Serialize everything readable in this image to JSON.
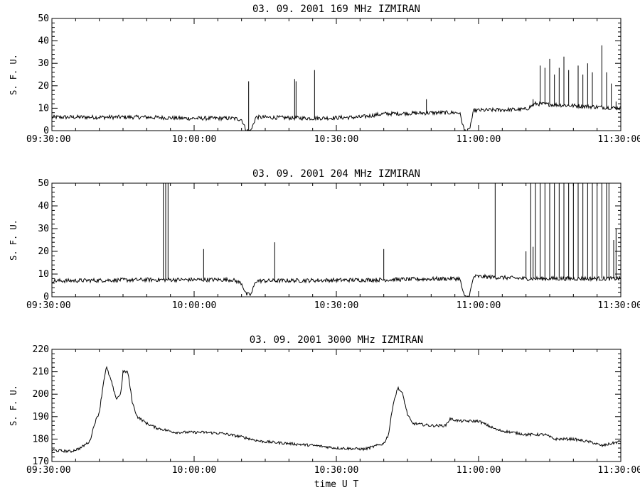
{
  "chart_data": [
    {
      "type": "line",
      "title": "03.  09.  2001   169 MHz   IZMIRAN",
      "ylabel": "S. F. U.",
      "xlabel": "",
      "ylim": [
        0,
        50
      ],
      "yticks": [
        0,
        10,
        20,
        30,
        40,
        50
      ],
      "xticks": [
        "09:30:00",
        "10:00:00",
        "10:30:00",
        "11:00:00",
        "11:30:00"
      ],
      "x_range_minutes": [
        0,
        120
      ],
      "baseline": [
        [
          0,
          6
        ],
        [
          20,
          6
        ],
        [
          28,
          5.5
        ],
        [
          38,
          5.5
        ],
        [
          40,
          5
        ],
        [
          41,
          0
        ],
        [
          42,
          0
        ],
        [
          43,
          6
        ],
        [
          55,
          5.5
        ],
        [
          65,
          6
        ],
        [
          70,
          7.5
        ],
        [
          82,
          8
        ],
        [
          86,
          8
        ],
        [
          87,
          0
        ],
        [
          88,
          0
        ],
        [
          89,
          9
        ],
        [
          100,
          9.5
        ],
        [
          102,
          12
        ],
        [
          120,
          10
        ]
      ],
      "spikes": [
        [
          41.5,
          22
        ],
        [
          51.2,
          23
        ],
        [
          51.5,
          22
        ],
        [
          55.4,
          27
        ],
        [
          79,
          14
        ],
        [
          101.5,
          14
        ],
        [
          103,
          29
        ],
        [
          104,
          28
        ],
        [
          105,
          32
        ],
        [
          106,
          25
        ],
        [
          107,
          28
        ],
        [
          108,
          33
        ],
        [
          109,
          27
        ],
        [
          111,
          29
        ],
        [
          112,
          25
        ],
        [
          113,
          30
        ],
        [
          114,
          26
        ],
        [
          116,
          38
        ],
        [
          117,
          26
        ],
        [
          118,
          21
        ],
        [
          119,
          13
        ]
      ],
      "noise": 0.9
    },
    {
      "type": "line",
      "title": "03.  09.  2001   204 MHz   IZMIRAN",
      "ylabel": "S. F. U.",
      "xlabel": "",
      "ylim": [
        0,
        50
      ],
      "yticks": [
        0,
        10,
        20,
        30,
        40,
        50
      ],
      "xticks": [
        "09:30:00",
        "10:00:00",
        "10:30:00",
        "11:00:00",
        "11:30:00"
      ],
      "x_range_minutes": [
        0,
        120
      ],
      "baseline": [
        [
          0,
          7
        ],
        [
          20,
          7.5
        ],
        [
          38,
          7.5
        ],
        [
          40,
          6
        ],
        [
          41,
          1
        ],
        [
          42,
          1
        ],
        [
          43,
          7
        ],
        [
          70,
          7.5
        ],
        [
          84,
          8
        ],
        [
          86,
          8
        ],
        [
          87,
          0
        ],
        [
          88,
          0
        ],
        [
          89,
          9
        ],
        [
          100,
          8
        ],
        [
          120,
          8
        ]
      ],
      "spikes": [
        [
          23.5,
          50
        ],
        [
          24,
          50
        ],
        [
          24.5,
          50
        ],
        [
          32,
          21
        ],
        [
          47,
          24
        ],
        [
          70,
          21
        ],
        [
          93.5,
          50
        ],
        [
          101,
          50
        ],
        [
          102,
          50
        ],
        [
          103,
          50
        ],
        [
          104,
          50
        ],
        [
          105,
          50
        ],
        [
          106,
          50
        ],
        [
          107,
          50
        ],
        [
          108,
          50
        ],
        [
          109,
          50
        ],
        [
          110,
          50
        ],
        [
          111,
          50
        ],
        [
          112,
          50
        ],
        [
          113,
          50
        ],
        [
          114,
          50
        ],
        [
          115,
          50
        ],
        [
          116,
          50
        ],
        [
          117,
          50
        ],
        [
          117.5,
          50
        ],
        [
          100,
          20
        ],
        [
          101.5,
          22
        ],
        [
          118.5,
          25
        ],
        [
          119,
          30
        ]
      ],
      "noise": 0.9
    },
    {
      "type": "line",
      "title": "03.  09.  2001   3000 MHz   IZMIRAN",
      "ylabel": "S. F. U.",
      "xlabel": "time   U T",
      "ylim": [
        170,
        220
      ],
      "yticks": [
        170,
        180,
        190,
        200,
        210,
        220
      ],
      "xticks": [
        "09:30:00",
        "10:00:00",
        "10:30:00",
        "11:00:00",
        "11:30:00"
      ],
      "x_range_minutes": [
        0,
        120
      ],
      "points": [
        [
          0,
          175
        ],
        [
          4,
          174.5
        ],
        [
          6,
          176
        ],
        [
          8,
          179
        ],
        [
          9,
          187
        ],
        [
          10,
          192
        ],
        [
          11,
          207
        ],
        [
          11.5,
          212
        ],
        [
          12.5,
          206
        ],
        [
          13.5,
          198
        ],
        [
          14.5,
          200
        ],
        [
          15,
          210
        ],
        [
          16,
          210
        ],
        [
          17,
          196
        ],
        [
          18,
          190
        ],
        [
          20,
          187
        ],
        [
          22,
          185
        ],
        [
          26,
          183
        ],
        [
          32,
          183
        ],
        [
          36,
          182.5
        ],
        [
          40,
          181
        ],
        [
          44,
          179
        ],
        [
          50,
          178
        ],
        [
          56,
          177
        ],
        [
          60,
          176
        ],
        [
          66,
          175.5
        ],
        [
          70,
          178
        ],
        [
          71,
          182
        ],
        [
          72,
          196
        ],
        [
          73,
          203
        ],
        [
          74,
          200
        ],
        [
          75,
          191
        ],
        [
          76,
          187
        ],
        [
          80,
          186
        ],
        [
          83,
          186
        ],
        [
          84,
          189
        ],
        [
          86,
          188
        ],
        [
          90,
          188
        ],
        [
          94,
          184
        ],
        [
          100,
          182
        ],
        [
          104,
          182
        ],
        [
          106,
          180
        ],
        [
          110,
          180
        ],
        [
          114,
          178.5
        ],
        [
          116,
          177
        ],
        [
          118,
          178
        ],
        [
          120,
          179
        ]
      ],
      "noise": 0.6
    }
  ]
}
